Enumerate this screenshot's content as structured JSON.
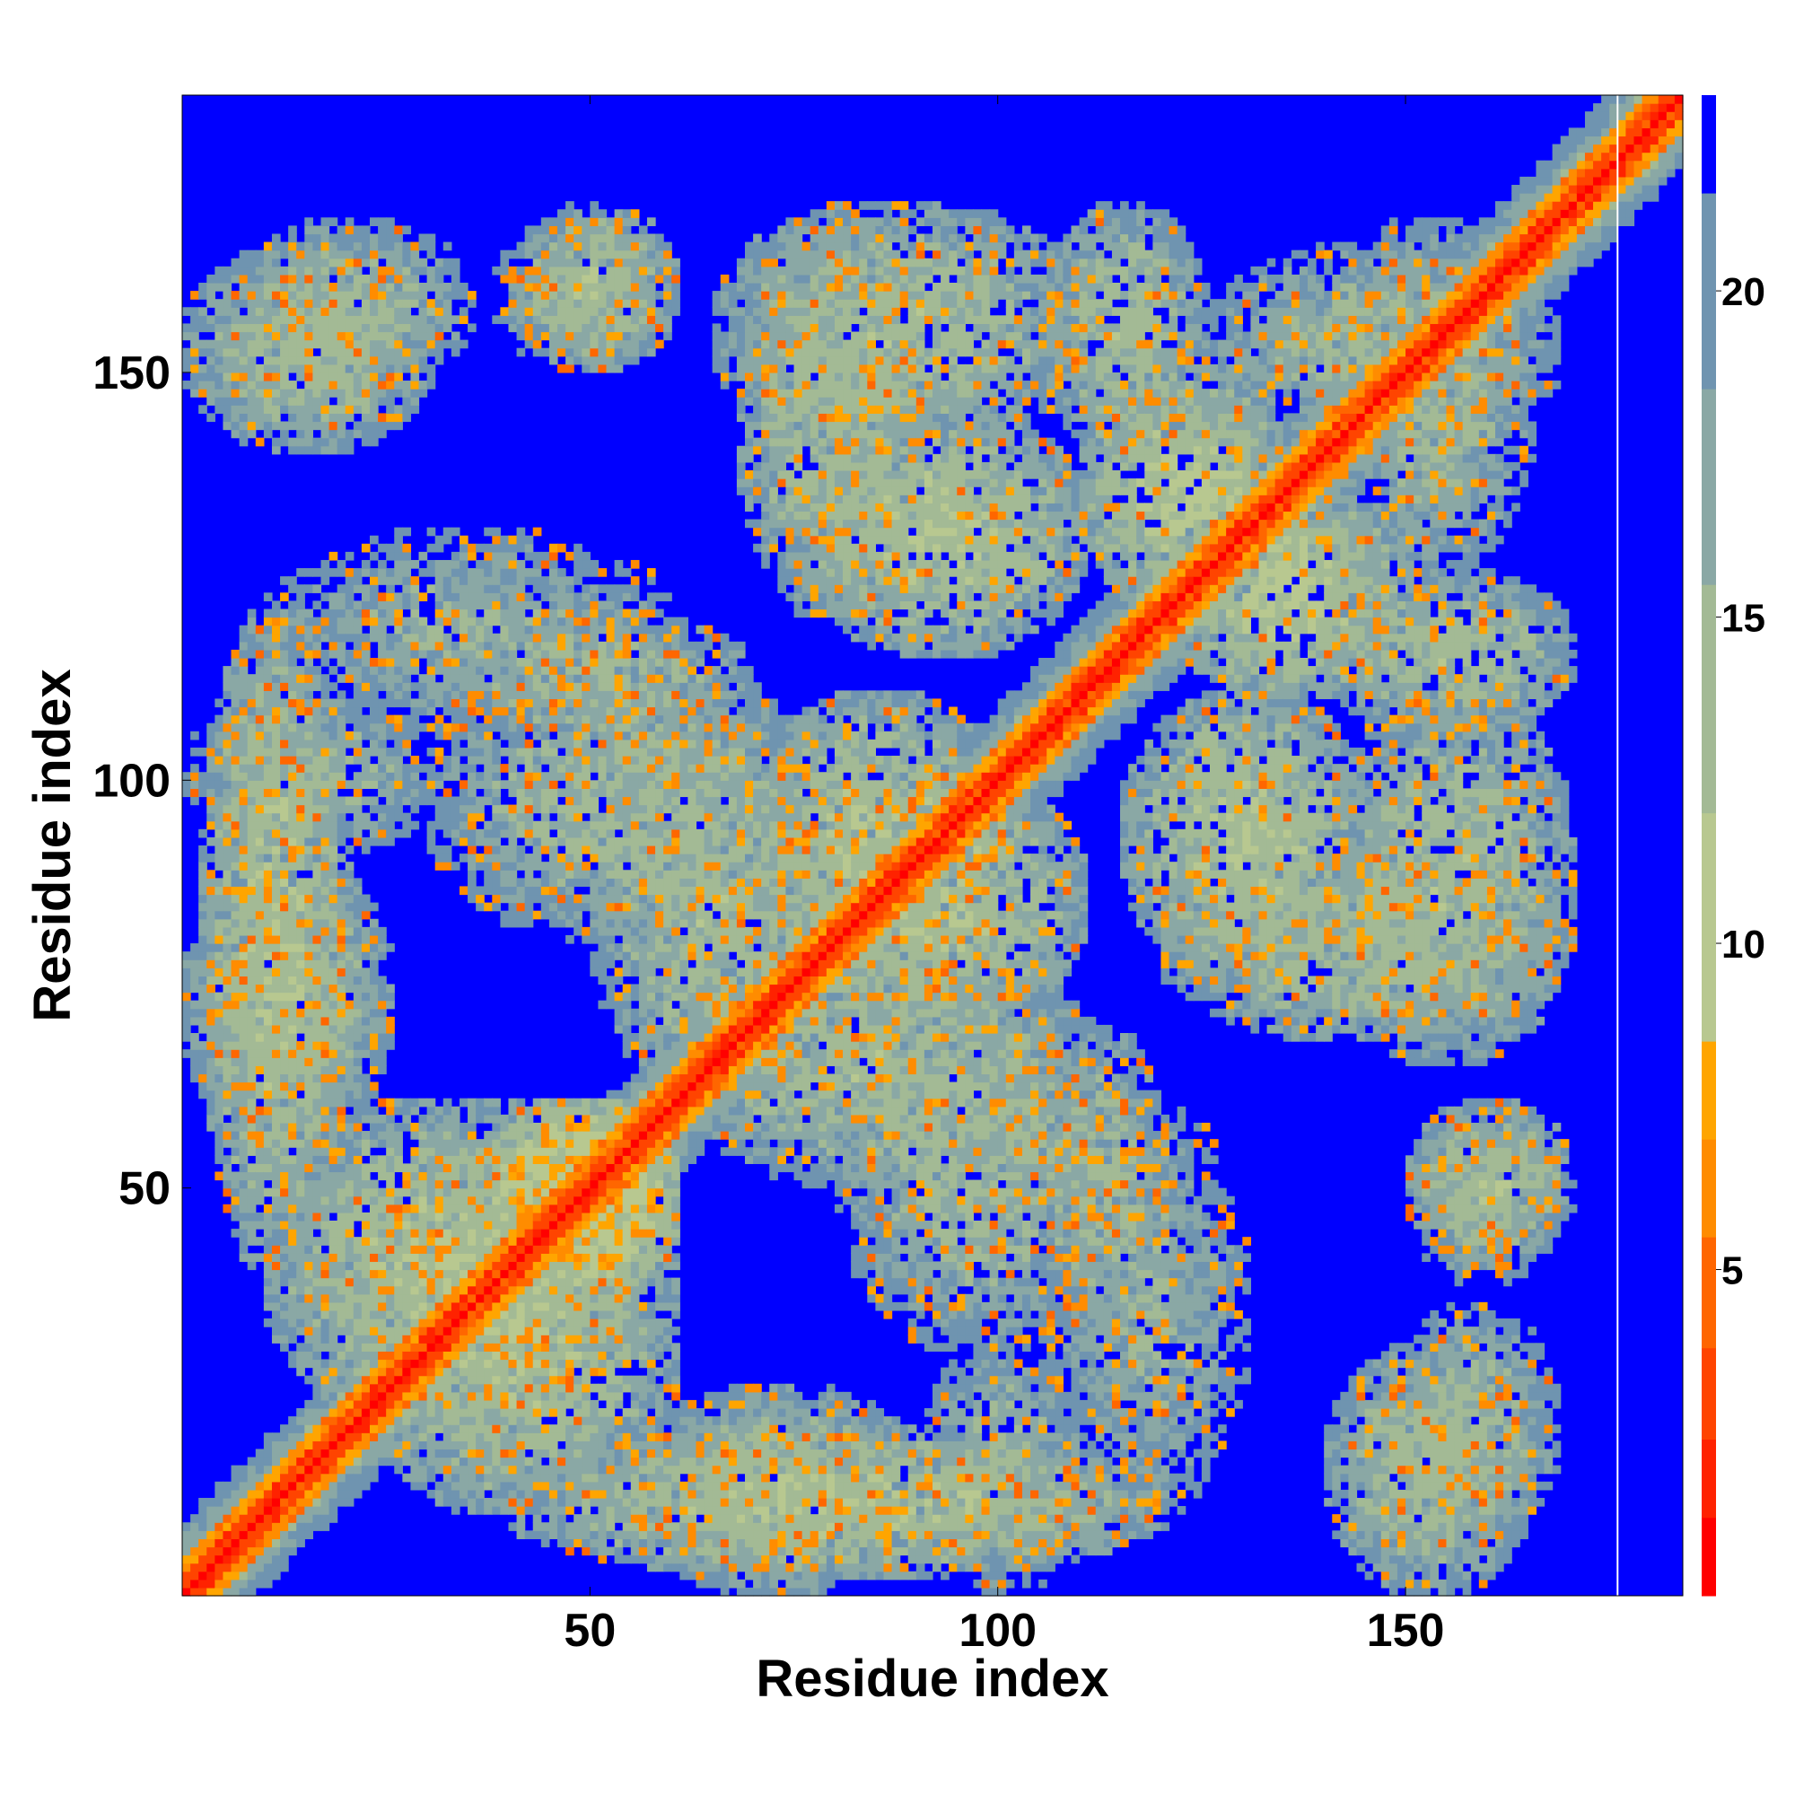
{
  "chart_data": {
    "type": "heatmap",
    "title": "",
    "xlabel": "Residue index",
    "ylabel": "Residue index",
    "xlim": [
      0,
      184
    ],
    "ylim": [
      0,
      184
    ],
    "x_ticks": [
      50,
      100,
      150
    ],
    "y_ticks": [
      50,
      100,
      150
    ],
    "x_tick_labels": [
      "50",
      "100",
      "150"
    ],
    "y_tick_labels": [
      "50",
      "100",
      "150"
    ],
    "colorbar": {
      "range": [
        0,
        23
      ],
      "ticks": [
        5,
        10,
        15,
        20
      ],
      "tick_labels": [
        "5",
        "10",
        "15",
        "20"
      ],
      "levels": [
        {
          "from": 0,
          "to": 1.2,
          "color": "#ff0000"
        },
        {
          "from": 1.2,
          "to": 2.4,
          "color": "#ff2200"
        },
        {
          "from": 2.4,
          "to": 3.8,
          "color": "#ff4400"
        },
        {
          "from": 3.8,
          "to": 5.5,
          "color": "#ff6600"
        },
        {
          "from": 5.5,
          "to": 7.0,
          "color": "#ff8c00"
        },
        {
          "from": 7.0,
          "to": 8.5,
          "color": "#ffa500"
        },
        {
          "from": 8.5,
          "to": 12.0,
          "color": "#b8c890"
        },
        {
          "from": 12.0,
          "to": 15.5,
          "color": "#a3ba95"
        },
        {
          "from": 15.5,
          "to": 18.5,
          "color": "#8aa8a5"
        },
        {
          "from": 18.5,
          "to": 21.5,
          "color": "#6f94b0"
        },
        {
          "from": 21.5,
          "to": 23,
          "color": "#0000ff"
        }
      ]
    },
    "matrix_size": 184,
    "gap_residue": 176,
    "background_color": "#0000ff",
    "diagonal_color": "#ff0000",
    "description_values": {
      "diagonal_distance": 0.5,
      "secondary_structure_near_diagonal": 6,
      "non_contact_distance": 23
    },
    "contact_regions": [
      {
        "x": [
          5,
          35
        ],
        "y": [
          148,
          168
        ],
        "d": 15
      },
      {
        "x": [
          38,
          60
        ],
        "y": [
          150,
          168
        ],
        "d": 15
      },
      {
        "x": [
          68,
          90
        ],
        "y": [
          120,
          168
        ],
        "d": 14
      },
      {
        "x": [
          105,
          125
        ],
        "y": [
          140,
          170
        ],
        "d": 14
      },
      {
        "x": [
          2,
          20
        ],
        "y": [
          40,
          120
        ],
        "d": 13
      },
      {
        "x": [
          10,
          55
        ],
        "y": [
          20,
          60
        ],
        "d": 13
      },
      {
        "x": [
          40,
          60
        ],
        "y": [
          35,
          60
        ],
        "d": 10
      },
      {
        "x": [
          55,
          90
        ],
        "y": [
          0,
          25
        ],
        "d": 14
      },
      {
        "x": [
          90,
          110
        ],
        "y": [
          0,
          30
        ],
        "d": 15
      },
      {
        "x": [
          140,
          165
        ],
        "y": [
          0,
          30
        ],
        "d": 14
      },
      {
        "x": [
          150,
          170
        ],
        "y": [
          40,
          60
        ],
        "d": 14
      },
      {
        "x": [
          105,
          130
        ],
        "y": [
          10,
          60
        ],
        "d": 16
      },
      {
        "x": [
          70,
          100
        ],
        "y": [
          75,
          110
        ],
        "d": 13
      },
      {
        "x": [
          115,
          145
        ],
        "y": [
          75,
          110
        ],
        "d": 13
      },
      {
        "x": [
          120,
          150
        ],
        "y": [
          110,
          135
        ],
        "d": 12
      },
      {
        "x": [
          140,
          170
        ],
        "y": [
          65,
          110
        ],
        "d": 14
      },
      {
        "x": [
          30,
          70
        ],
        "y": [
          105,
          120
        ],
        "d": 15
      },
      {
        "x": [
          140,
          165
        ],
        "y": [
          125,
          168
        ],
        "d": 15
      },
      {
        "x": [
          50,
          80
        ],
        "y": [
          60,
          110
        ],
        "d": 14
      },
      {
        "x": [
          80,
          115
        ],
        "y": [
          30,
          75
        ],
        "d": 15
      }
    ]
  }
}
